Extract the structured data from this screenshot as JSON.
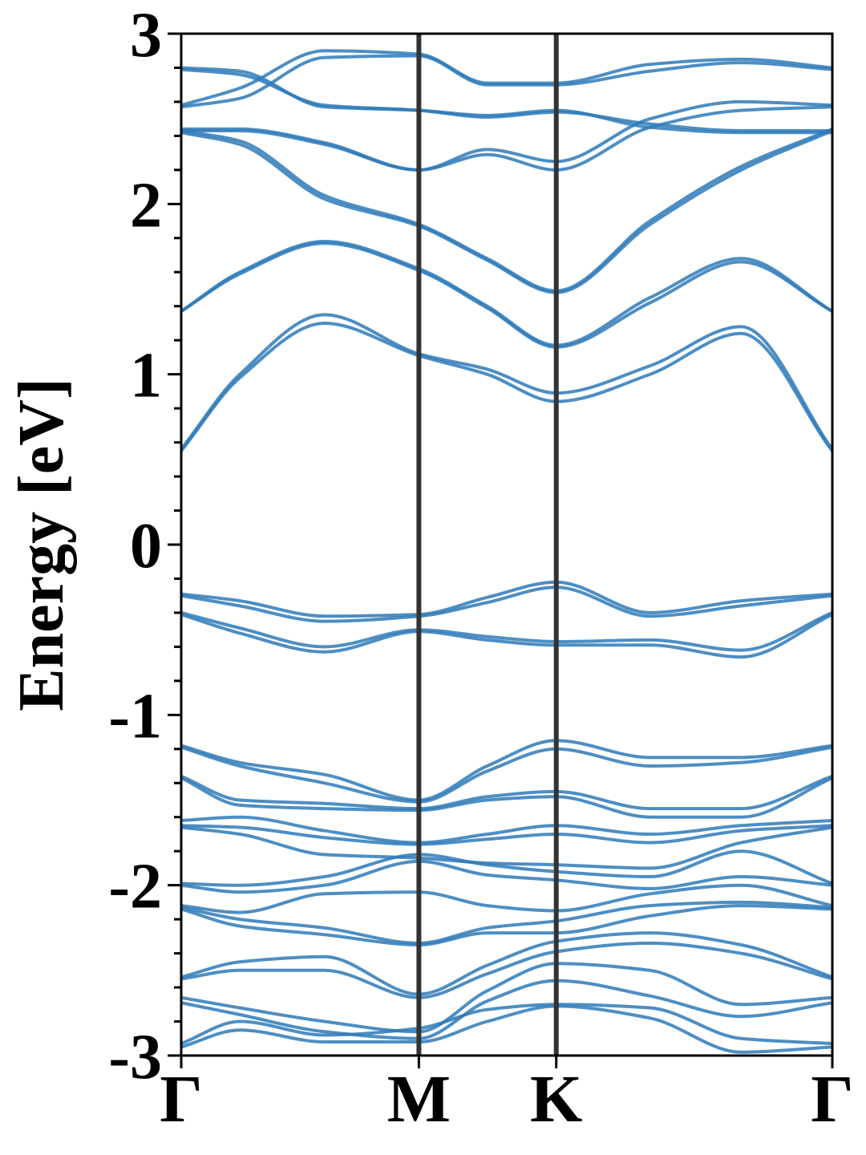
{
  "chart_data": {
    "type": "line",
    "title": "",
    "xlabel": "",
    "ylabel": "Energy [eV]",
    "ylim": [
      -3,
      3
    ],
    "xlim": [
      0,
      1
    ],
    "grid": false,
    "legend": "none",
    "line_color": "#2e7ab8",
    "symmetry_line_color": "#333333",
    "yticks": [
      -3,
      -2,
      -1,
      0,
      1,
      2,
      3
    ],
    "ytick_labels": [
      "-3",
      "-2",
      "-1",
      "0",
      "1",
      "2",
      "3"
    ],
    "yminor_step": 0.2,
    "kpoints": [
      {
        "label": "Γ",
        "x": 0.0
      },
      {
        "label": "M",
        "x": 0.365
      },
      {
        "label": "K",
        "x": 0.576
      },
      {
        "label": "Γ",
        "x": 1.0
      }
    ],
    "node_x": [
      0.0,
      0.09,
      0.22,
      0.365,
      0.47,
      0.576,
      0.72,
      0.86,
      1.0
    ],
    "series": [
      {
        "values": [
          2.8,
          2.78,
          2.57,
          2.55,
          2.52,
          2.55,
          2.45,
          2.42,
          2.42
        ]
      },
      {
        "values": [
          2.79,
          2.76,
          2.58,
          2.55,
          2.51,
          2.54,
          2.47,
          2.43,
          2.43
        ]
      },
      {
        "values": [
          2.58,
          2.68,
          2.9,
          2.88,
          2.71,
          2.71,
          2.82,
          2.85,
          2.8
        ]
      },
      {
        "values": [
          2.57,
          2.62,
          2.86,
          2.87,
          2.7,
          2.7,
          2.78,
          2.83,
          2.79
        ]
      },
      {
        "values": [
          2.44,
          2.44,
          2.36,
          2.2,
          2.32,
          2.25,
          2.5,
          2.6,
          2.58
        ]
      },
      {
        "values": [
          2.43,
          2.43,
          2.35,
          2.2,
          2.29,
          2.2,
          2.45,
          2.55,
          2.57
        ]
      },
      {
        "values": [
          2.43,
          2.37,
          2.05,
          1.88,
          1.68,
          1.49,
          1.9,
          2.22,
          2.44
        ]
      },
      {
        "values": [
          2.42,
          2.35,
          2.03,
          1.87,
          1.67,
          1.48,
          1.88,
          2.2,
          2.43
        ]
      },
      {
        "values": [
          1.37,
          1.6,
          1.78,
          1.62,
          1.4,
          1.17,
          1.45,
          1.68,
          1.37
        ]
      },
      {
        "values": [
          1.37,
          1.59,
          1.77,
          1.61,
          1.39,
          1.16,
          1.42,
          1.66,
          1.37
        ]
      },
      {
        "values": [
          0.56,
          1.0,
          1.35,
          1.12,
          1.03,
          0.89,
          1.05,
          1.28,
          0.56
        ]
      },
      {
        "values": [
          0.55,
          0.98,
          1.3,
          1.11,
          1.0,
          0.84,
          1.0,
          1.24,
          0.55
        ]
      },
      {
        "values": [
          -0.29,
          -0.33,
          -0.42,
          -0.41,
          -0.31,
          -0.22,
          -0.4,
          -0.33,
          -0.29
        ]
      },
      {
        "values": [
          -0.3,
          -0.36,
          -0.45,
          -0.42,
          -0.34,
          -0.25,
          -0.42,
          -0.36,
          -0.3
        ]
      },
      {
        "values": [
          -0.4,
          -0.49,
          -0.6,
          -0.5,
          -0.54,
          -0.57,
          -0.56,
          -0.62,
          -0.4
        ]
      },
      {
        "values": [
          -0.41,
          -0.52,
          -0.63,
          -0.51,
          -0.56,
          -0.59,
          -0.59,
          -0.66,
          -0.41
        ]
      },
      {
        "values": [
          -1.18,
          -1.28,
          -1.35,
          -1.5,
          -1.3,
          -1.15,
          -1.25,
          -1.25,
          -1.18
        ]
      },
      {
        "values": [
          -1.19,
          -1.3,
          -1.4,
          -1.51,
          -1.33,
          -1.2,
          -1.3,
          -1.28,
          -1.19
        ]
      },
      {
        "values": [
          -1.36,
          -1.5,
          -1.52,
          -1.55,
          -1.48,
          -1.45,
          -1.55,
          -1.55,
          -1.36
        ]
      },
      {
        "values": [
          -1.37,
          -1.53,
          -1.55,
          -1.56,
          -1.5,
          -1.48,
          -1.6,
          -1.6,
          -1.37
        ]
      },
      {
        "values": [
          -1.62,
          -1.6,
          -1.68,
          -1.75,
          -1.7,
          -1.65,
          -1.7,
          -1.65,
          -1.62
        ]
      },
      {
        "values": [
          -1.65,
          -1.66,
          -1.72,
          -1.76,
          -1.73,
          -1.7,
          -1.75,
          -1.68,
          -1.65
        ]
      },
      {
        "values": [
          -1.66,
          -1.7,
          -1.82,
          -1.84,
          -1.87,
          -1.88,
          -1.9,
          -1.75,
          -1.66
        ]
      },
      {
        "values": [
          -1.99,
          -2.0,
          -1.95,
          -1.82,
          -1.88,
          -1.92,
          -1.95,
          -1.8,
          -1.99
        ]
      },
      {
        "values": [
          -2.0,
          -2.04,
          -2.0,
          -1.86,
          -1.94,
          -1.97,
          -2.02,
          -1.95,
          -2.0
        ]
      },
      {
        "values": [
          -2.12,
          -2.16,
          -2.05,
          -2.04,
          -2.12,
          -2.15,
          -2.05,
          -2.0,
          -2.12
        ]
      },
      {
        "values": [
          -2.13,
          -2.2,
          -2.25,
          -2.34,
          -2.25,
          -2.21,
          -2.12,
          -2.1,
          -2.13
        ]
      },
      {
        "values": [
          -2.14,
          -2.24,
          -2.29,
          -2.35,
          -2.28,
          -2.28,
          -2.18,
          -2.12,
          -2.14
        ]
      },
      {
        "values": [
          -2.54,
          -2.45,
          -2.42,
          -2.64,
          -2.47,
          -2.33,
          -2.28,
          -2.35,
          -2.54
        ]
      },
      {
        "values": [
          -2.55,
          -2.5,
          -2.5,
          -2.66,
          -2.52,
          -2.39,
          -2.34,
          -2.4,
          -2.55
        ]
      },
      {
        "values": [
          -2.66,
          -2.72,
          -2.8,
          -2.86,
          -2.62,
          -2.46,
          -2.5,
          -2.7,
          -2.66
        ]
      },
      {
        "values": [
          -2.69,
          -2.76,
          -2.86,
          -2.9,
          -2.68,
          -2.56,
          -2.65,
          -2.77,
          -2.69
        ]
      },
      {
        "values": [
          -2.93,
          -2.8,
          -2.88,
          -2.84,
          -2.73,
          -2.7,
          -2.72,
          -2.9,
          -2.93
        ]
      },
      {
        "values": [
          -2.95,
          -2.85,
          -2.92,
          -2.92,
          -2.8,
          -2.71,
          -2.78,
          -2.98,
          -2.95
        ]
      }
    ]
  }
}
